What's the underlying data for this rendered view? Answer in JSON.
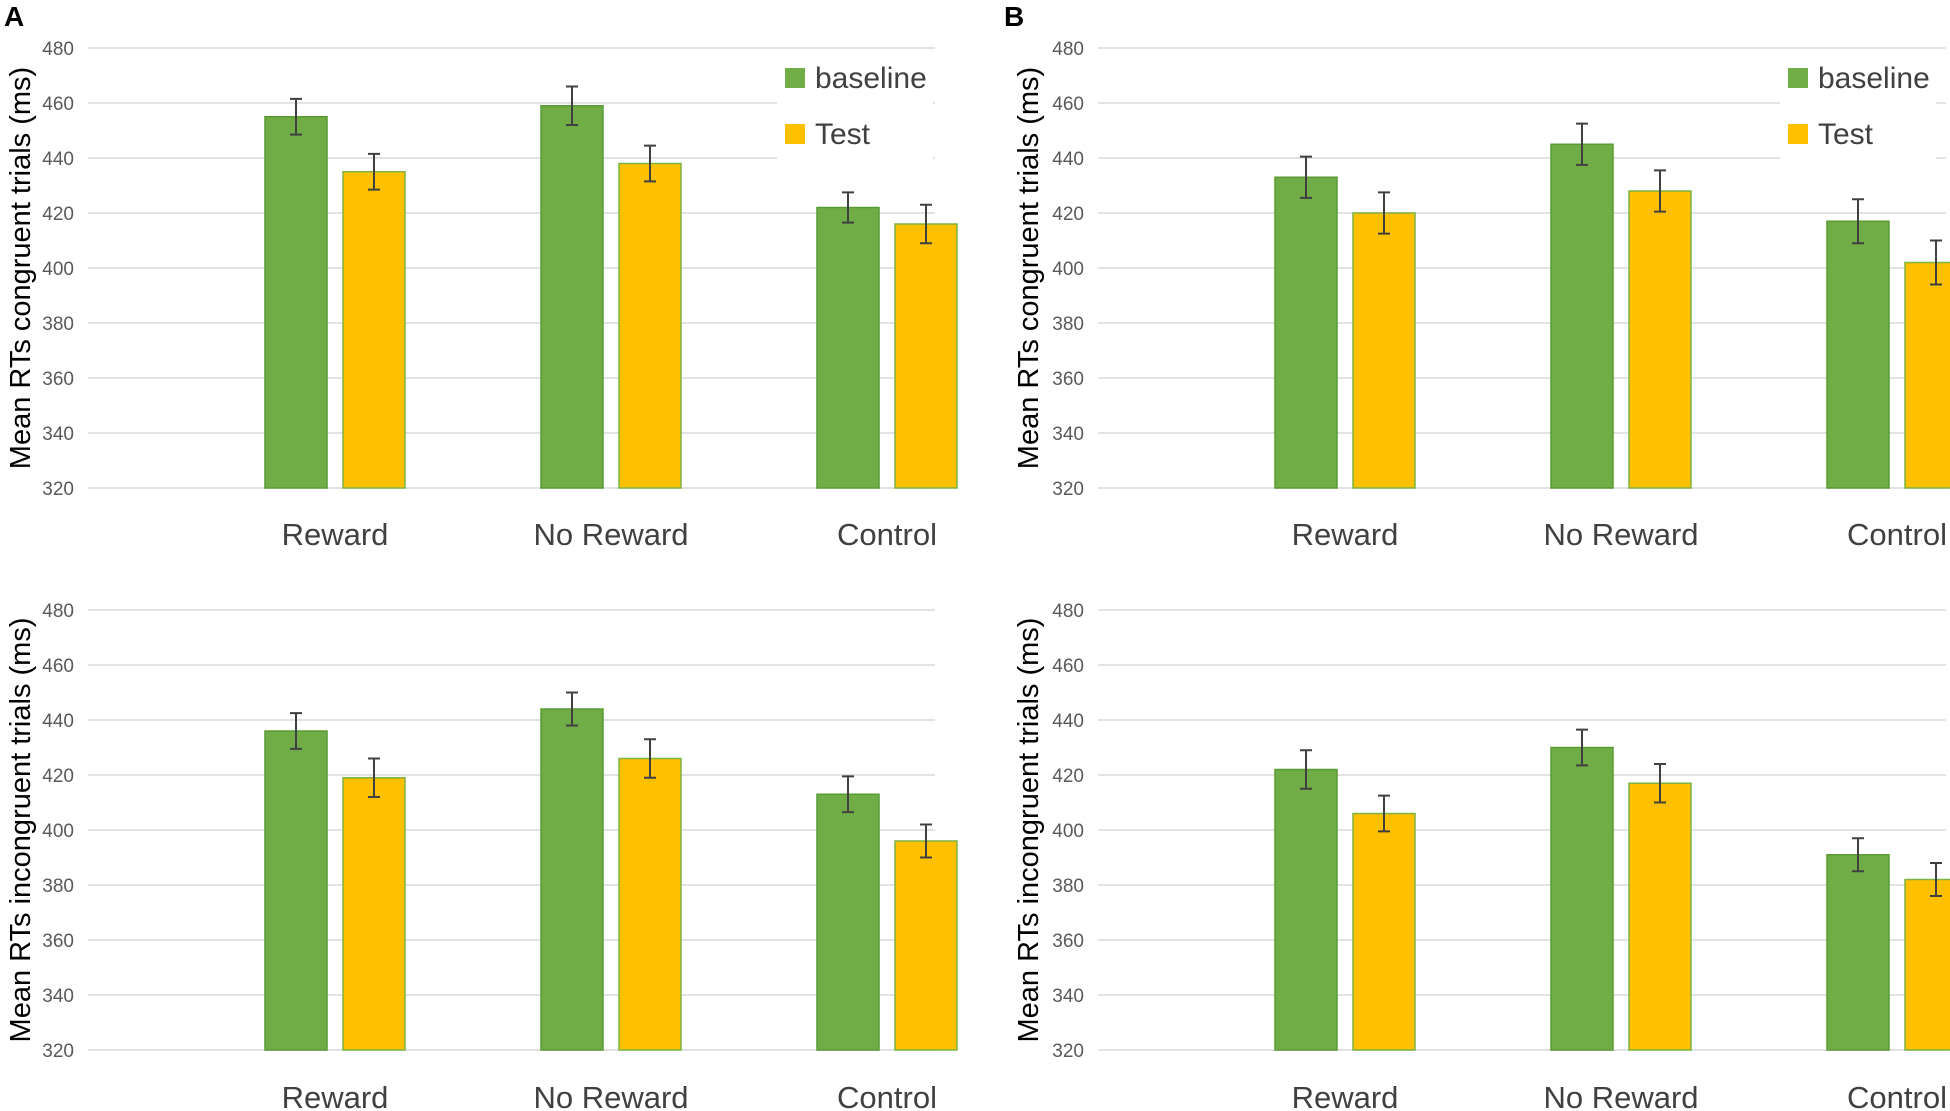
{
  "panels": [
    {
      "letter": "A"
    },
    {
      "letter": "B"
    }
  ],
  "legend": {
    "baseline": "baseline",
    "test": "Test"
  },
  "colors": {
    "baseline": "#70ad47",
    "baseline_edge": "#5a9a33",
    "test": "#ffc000",
    "test_edge": "#7cb342",
    "grid": "#d9d9d9"
  },
  "chart_data": [
    {
      "panel": "A",
      "type": "bar",
      "title": "",
      "ylabel": "Mean RTs congruent trials (ms)",
      "xlabel": "",
      "ylim": [
        320,
        480
      ],
      "yticks": [
        320,
        340,
        360,
        380,
        400,
        420,
        440,
        460,
        480
      ],
      "categories": [
        "Reward",
        "No Reward",
        "Control"
      ],
      "series": [
        {
          "name": "baseline",
          "values": [
            455,
            459,
            422
          ],
          "errors": [
            6.5,
            7,
            5.5
          ]
        },
        {
          "name": "Test",
          "values": [
            435,
            438,
            416
          ],
          "errors": [
            6.5,
            6.5,
            7
          ]
        }
      ],
      "legend": "top-right",
      "grid": true
    },
    {
      "panel": "B",
      "type": "bar",
      "title": "",
      "ylabel": "Mean RTs congruent trials (ms)",
      "xlabel": "",
      "ylim": [
        320,
        480
      ],
      "yticks": [
        320,
        340,
        360,
        380,
        400,
        420,
        440,
        460,
        480
      ],
      "categories": [
        "Reward",
        "No Reward",
        "Control"
      ],
      "series": [
        {
          "name": "baseline",
          "values": [
            433,
            445,
            417
          ],
          "errors": [
            7.5,
            7.5,
            8
          ]
        },
        {
          "name": "Test",
          "values": [
            420,
            428,
            402
          ],
          "errors": [
            7.5,
            7.5,
            8
          ]
        }
      ],
      "legend": "top-right",
      "grid": true
    },
    {
      "panel": "A",
      "type": "bar",
      "title": "",
      "ylabel": "Mean RTs incongruent trials (ms)",
      "xlabel": "",
      "ylim": [
        320,
        480
      ],
      "yticks": [
        320,
        340,
        360,
        380,
        400,
        420,
        440,
        460,
        480
      ],
      "categories": [
        "Reward",
        "No Reward",
        "Control"
      ],
      "series": [
        {
          "name": "baseline",
          "values": [
            436,
            444,
            413
          ],
          "errors": [
            6.5,
            6,
            6.5
          ]
        },
        {
          "name": "Test",
          "values": [
            419,
            426,
            396
          ],
          "errors": [
            7,
            7,
            6
          ]
        }
      ],
      "legend": "none",
      "grid": true
    },
    {
      "panel": "B",
      "type": "bar",
      "title": "",
      "ylabel": "Mean RTs incongruent trials (ms)",
      "xlabel": "",
      "ylim": [
        320,
        480
      ],
      "yticks": [
        320,
        340,
        360,
        380,
        400,
        420,
        440,
        460,
        480
      ],
      "categories": [
        "Reward",
        "No Reward",
        "Control"
      ],
      "series": [
        {
          "name": "baseline",
          "values": [
            422,
            430,
            391
          ],
          "errors": [
            7,
            6.5,
            6
          ]
        },
        {
          "name": "Test",
          "values": [
            406,
            417,
            382
          ],
          "errors": [
            6.5,
            7,
            6
          ]
        }
      ],
      "legend": "none",
      "grid": true
    }
  ]
}
